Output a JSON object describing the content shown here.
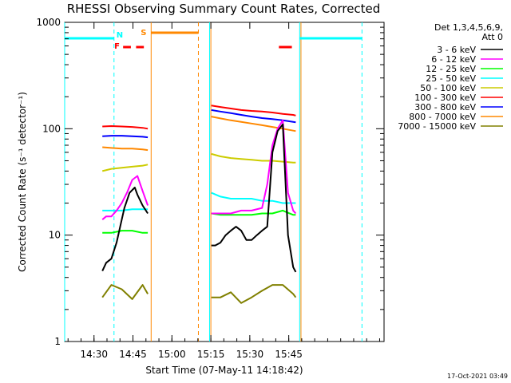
{
  "chart_data": {
    "type": "line",
    "title": "RHESSI Observing Summary Count Rates, Corrected",
    "xlabel": "Start Time (07-May-11 14:18:42)",
    "ylabel": "Corrected Count Rate (s⁻¹ detector⁻¹)",
    "yscale": "log",
    "ylim": [
      1,
      1000
    ],
    "xlim_min_after_start": [
      0,
      123
    ],
    "x_tick_labels": [
      "14:30",
      "14:45",
      "15:00",
      "15:15",
      "15:30",
      "15:45"
    ],
    "x_ticks_minutes": [
      11.3,
      26.3,
      41.3,
      56.3,
      71.3,
      86.3
    ],
    "y_tick_labels": [
      "1",
      "10",
      "100",
      "1000"
    ],
    "y_ticks": [
      1,
      10,
      100,
      1000
    ],
    "timestamp": "17-Oct-2021 03:49",
    "legend": {
      "header_lines": [
        "Det 1,3,4,5,6,9,",
        "Att 0"
      ],
      "position": "top-right"
    },
    "series": [
      {
        "name": "3 - 6 keV",
        "color": "#000000",
        "segments": [
          {
            "x": [
              14.5,
              16,
              18,
              20,
              22,
              23,
              25,
              27,
              28,
              30,
              32
            ],
            "y": [
              4.6,
              5.5,
              6.0,
              8.5,
              14,
              18,
              25,
              28,
              24,
              19,
              16
            ]
          },
          {
            "x": [
              56.5,
              58,
              60,
              62,
              64,
              66,
              68,
              70,
              72,
              74,
              76,
              78,
              80,
              82,
              84,
              86,
              88,
              89
            ],
            "y": [
              8,
              8,
              8.5,
              10,
              11,
              12,
              11,
              9,
              9,
              10,
              11,
              12,
              60,
              95,
              110,
              10,
              5,
              4.5
            ]
          }
        ]
      },
      {
        "name": "6 - 12 keV",
        "color": "#ff00ff",
        "segments": [
          {
            "x": [
              14.5,
              16,
              18,
              20,
              22,
              24,
              26,
              28,
              30,
              32
            ],
            "y": [
              14,
              15,
              15,
              17,
              20,
              25,
              33,
              36,
              26,
              19
            ]
          },
          {
            "x": [
              56.5,
              60,
              64,
              68,
              72,
              76,
              78,
              80,
              82,
              84,
              86,
              88,
              89
            ],
            "y": [
              16,
              16,
              16,
              17,
              17,
              18,
              30,
              70,
              100,
              120,
              25,
              17,
              16
            ]
          }
        ]
      },
      {
        "name": "12 - 25 keV",
        "color": "#00ff00",
        "segments": [
          {
            "x": [
              14.5,
              18,
              22,
              26,
              30,
              32
            ],
            "y": [
              10.5,
              10.5,
              11,
              11,
              10.5,
              10.5
            ]
          },
          {
            "x": [
              56.5,
              60,
              64,
              68,
              72,
              76,
              80,
              84,
              88,
              89
            ],
            "y": [
              16,
              15.5,
              15.5,
              15.5,
              15.5,
              16,
              16,
              17,
              15.5,
              15.5
            ]
          }
        ]
      },
      {
        "name": "25 - 50 keV",
        "color": "#00ffff",
        "segments": [
          {
            "x": [
              14.5,
              18,
              22,
              26,
              30,
              32
            ],
            "y": [
              17,
              17,
              17,
              17.5,
              17.5,
              17.5
            ]
          },
          {
            "x": [
              56.5,
              60,
              64,
              68,
              72,
              76,
              80,
              84,
              88,
              89
            ],
            "y": [
              25,
              23,
              22,
              22,
              22,
              21,
              21,
              20,
              20,
              20
            ]
          }
        ]
      },
      {
        "name": "50 - 100 keV",
        "color": "#cccc00",
        "segments": [
          {
            "x": [
              14.5,
              18,
              22,
              26,
              30,
              32
            ],
            "y": [
              40,
              42,
              43,
              44,
              45,
              46
            ]
          },
          {
            "x": [
              56.5,
              60,
              64,
              68,
              72,
              76,
              80,
              84,
              88,
              89
            ],
            "y": [
              58,
              55,
              53,
              52,
              51,
              50,
              50,
              49,
              48,
              48
            ]
          }
        ]
      },
      {
        "name": "100 - 300 keV",
        "color": "#ff0000",
        "segments": [
          {
            "x": [
              14.5,
              18,
              22,
              26,
              30,
              32
            ],
            "y": [
              105,
              106,
              105,
              104,
              102,
              100
            ]
          },
          {
            "x": [
              56.5,
              60,
              64,
              68,
              72,
              76,
              80,
              84,
              88,
              89
            ],
            "y": [
              165,
              160,
              155,
              150,
              147,
              145,
              142,
              138,
              135,
              133
            ]
          }
        ]
      },
      {
        "name": "300 - 800 keV",
        "color": "#0000ff",
        "segments": [
          {
            "x": [
              14.5,
              18,
              22,
              26,
              30,
              32
            ],
            "y": [
              85,
              86,
              86,
              85,
              84,
              83
            ]
          },
          {
            "x": [
              56.5,
              60,
              64,
              68,
              72,
              76,
              80,
              84,
              88,
              89
            ],
            "y": [
              150,
              145,
              140,
              135,
              130,
              126,
              123,
              120,
              116,
              115
            ]
          }
        ]
      },
      {
        "name": "800 - 7000 keV",
        "color": "#ff8800",
        "segments": [
          {
            "x": [
              14.5,
              18,
              22,
              26,
              30,
              32
            ],
            "y": [
              67,
              66,
              65,
              65,
              64,
              63
            ]
          },
          {
            "x": [
              56.5,
              60,
              64,
              68,
              72,
              76,
              80,
              84,
              88,
              89
            ],
            "y": [
              130,
              125,
              120,
              116,
              112,
              108,
              104,
              100,
              96,
              95
            ]
          }
        ]
      },
      {
        "name": "7000 - 15000 keV",
        "color": "#808000",
        "segments": [
          {
            "x": [
              14.5,
              18,
              22,
              26,
              30,
              32
            ],
            "y": [
              2.6,
              3.4,
              3.1,
              2.5,
              3.4,
              2.8
            ]
          },
          {
            "x": [
              56.5,
              60,
              64,
              68,
              72,
              76,
              80,
              84,
              88,
              89
            ],
            "y": [
              2.6,
              2.6,
              2.9,
              2.3,
              2.6,
              3.0,
              3.4,
              3.4,
              2.8,
              2.6
            ]
          }
        ]
      }
    ],
    "annotations": {
      "night_intervals": [
        {
          "label": "N",
          "x_start": 0,
          "x_end": 19,
          "color": "#00ffff"
        },
        {
          "label": "",
          "x_start": 90.5,
          "x_end": 114.5,
          "color": "#00ffff"
        }
      ],
      "saa_intervals": [
        {
          "label": "S",
          "x_start": 33.3,
          "x_end": 51.5,
          "color": "#ff8800"
        }
      ],
      "flare_flags": [
        {
          "label": "F",
          "segments": [
            [
              22.5,
              25.5
            ],
            [
              27.5,
              30.5
            ]
          ],
          "color": "#ff0000"
        },
        {
          "label": "",
          "segments": [
            [
              82.5,
              87.5
            ]
          ],
          "color": "#ff0000"
        }
      ],
      "vertical_markers": [
        {
          "x": 0,
          "color": "#00ffff",
          "dashed": false
        },
        {
          "x": 19,
          "color": "#00ffff",
          "dashed": true
        },
        {
          "x": 33.3,
          "color": "#ff8800",
          "dashed": false
        },
        {
          "x": 51.5,
          "color": "#ff8800",
          "dashed": true
        },
        {
          "x": 55.8,
          "color": "#00ffff",
          "dashed": false
        },
        {
          "x": 56.3,
          "color": "#ff8800",
          "dashed": false
        },
        {
          "x": 90.5,
          "color": "#00ffff",
          "dashed": false
        },
        {
          "x": 91,
          "color": "#ff8800",
          "dashed": false
        },
        {
          "x": 114.5,
          "color": "#00ffff",
          "dashed": true
        }
      ]
    }
  }
}
